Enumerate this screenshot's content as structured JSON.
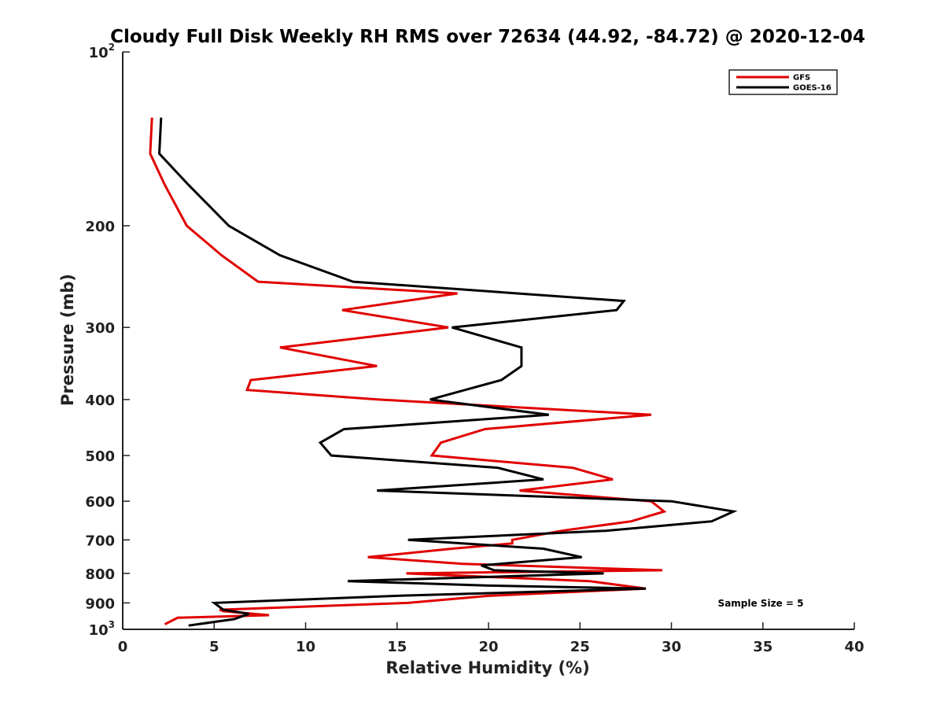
{
  "chart_data": {
    "type": "line",
    "title": "Cloudy Full Disk Weekly RH RMS over 72634 (44.92, -84.72) @ 2020-12-04",
    "xlabel": "Relative Humidity (%)",
    "ylabel": "Pressure (mb)",
    "xlim": [
      0,
      40
    ],
    "ylim": [
      100,
      1000
    ],
    "y_scale": "log",
    "y_reversed": true,
    "x_ticks": [
      "0",
      "5",
      "10",
      "15",
      "20",
      "25",
      "30",
      "35",
      "40"
    ],
    "y_ticks": [
      {
        "value": 100,
        "base": "10",
        "exp": "2"
      },
      {
        "value": 200,
        "label": "200"
      },
      {
        "value": 300,
        "label": "300"
      },
      {
        "value": 400,
        "label": "400"
      },
      {
        "value": 500,
        "label": "500"
      },
      {
        "value": 600,
        "label": "600"
      },
      {
        "value": 700,
        "label": "700"
      },
      {
        "value": 800,
        "label": "800"
      },
      {
        "value": 900,
        "label": "900"
      },
      {
        "value": 1000,
        "base": "10",
        "exp": "3"
      }
    ],
    "grid": false,
    "legend_position": "top-right",
    "series": [
      {
        "name": "GFS",
        "color": "#e00000",
        "points": [
          [
            1.6,
            130
          ],
          [
            1.5,
            150
          ],
          [
            2.3,
            170
          ],
          [
            3.5,
            200
          ],
          [
            5.4,
            225
          ],
          [
            7.4,
            250
          ],
          [
            18.3,
            262
          ],
          [
            12.0,
            280
          ],
          [
            17.8,
            300
          ],
          [
            8.6,
            325
          ],
          [
            13.9,
            350
          ],
          [
            7.0,
            370
          ],
          [
            6.8,
            385
          ],
          [
            14.0,
            400
          ],
          [
            28.9,
            425
          ],
          [
            19.8,
            450
          ],
          [
            17.4,
            475
          ],
          [
            16.9,
            500
          ],
          [
            24.6,
            525
          ],
          [
            26.8,
            550
          ],
          [
            21.7,
            575
          ],
          [
            28.9,
            600
          ],
          [
            29.6,
            625
          ],
          [
            27.8,
            650
          ],
          [
            24.0,
            675
          ],
          [
            21.3,
            700
          ],
          [
            21.3,
            710
          ],
          [
            18.0,
            725
          ],
          [
            13.4,
            750
          ],
          [
            18.6,
            770
          ],
          [
            29.5,
            790
          ],
          [
            15.5,
            800
          ],
          [
            25.5,
            825
          ],
          [
            28.6,
            850
          ],
          [
            20.0,
            875
          ],
          [
            15.6,
            900
          ],
          [
            5.3,
            925
          ],
          [
            5.5,
            930
          ],
          [
            8.0,
            945
          ],
          [
            3.0,
            955
          ],
          [
            2.3,
            980
          ]
        ]
      },
      {
        "name": "GOES-16",
        "color": "#000000",
        "points": [
          [
            2.1,
            130
          ],
          [
            2.0,
            150
          ],
          [
            3.6,
            170
          ],
          [
            5.8,
            200
          ],
          [
            8.6,
            225
          ],
          [
            12.6,
            250
          ],
          [
            27.4,
            270
          ],
          [
            27.0,
            280
          ],
          [
            18.0,
            300
          ],
          [
            21.8,
            325
          ],
          [
            21.8,
            350
          ],
          [
            20.7,
            370
          ],
          [
            16.8,
            400
          ],
          [
            23.3,
            425
          ],
          [
            12.1,
            450
          ],
          [
            10.8,
            475
          ],
          [
            11.4,
            500
          ],
          [
            20.5,
            525
          ],
          [
            23.0,
            550
          ],
          [
            13.9,
            575
          ],
          [
            30.0,
            600
          ],
          [
            33.4,
            625
          ],
          [
            32.2,
            650
          ],
          [
            26.4,
            675
          ],
          [
            15.6,
            700
          ],
          [
            23.0,
            725
          ],
          [
            25.1,
            750
          ],
          [
            19.6,
            775
          ],
          [
            20.3,
            790
          ],
          [
            26.3,
            800
          ],
          [
            12.3,
            825
          ],
          [
            20.0,
            840
          ],
          [
            28.6,
            850
          ],
          [
            15.0,
            875
          ],
          [
            5.0,
            900
          ],
          [
            5.5,
            925
          ],
          [
            6.9,
            940
          ],
          [
            6.1,
            960
          ],
          [
            3.6,
            985
          ]
        ]
      }
    ],
    "annotation": "Sample Size = 5"
  }
}
